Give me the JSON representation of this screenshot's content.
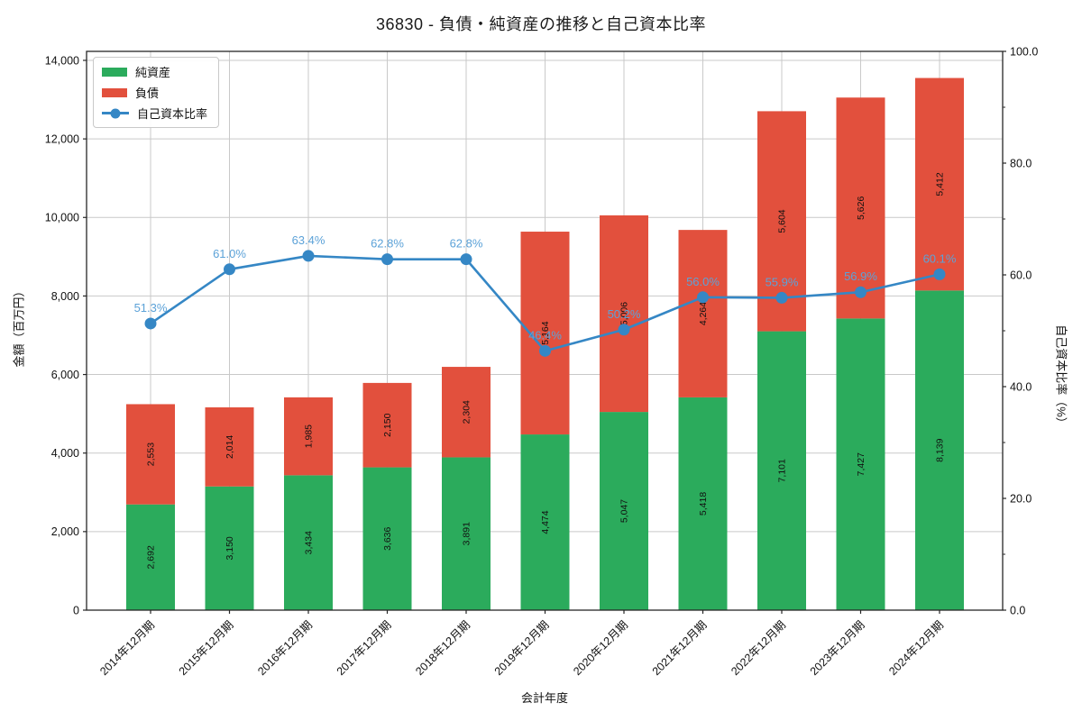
{
  "chart_title": "36830 - 負債・純資産の推移と自己資本比率",
  "axes": {
    "left_label": "金額（百万円）",
    "right_label": "自己資本比率（%）",
    "x_label": "会計年度"
  },
  "legend": {
    "items": [
      {
        "label": "純資産"
      },
      {
        "label": "負債"
      },
      {
        "label": "自己資本比率"
      }
    ]
  },
  "colors": {
    "net_assets_green": "#2bab5c",
    "liabilities_red": "#e2503d",
    "ratio_line_blue": "#3587c5",
    "ratio_label_blue": "#5ca2d8",
    "grid_gray": "#c9c9c9",
    "spine_black": "#262626",
    "bar_label_black": "#111111"
  },
  "chart_data": {
    "type": "bar",
    "subtype": "stacked-bar-with-line",
    "title": "36830 - 負債・純資産の推移と自己資本比率",
    "xlabel": "会計年度",
    "ylabel_left": "金額（百万円）",
    "ylabel_right": "自己資本比率（%）",
    "grid": true,
    "legend_position": "upper-left",
    "categories": [
      "2014年12月期",
      "2015年12月期",
      "2016年12月期",
      "2017年12月期",
      "2018年12月期",
      "2019年12月期",
      "2020年12月期",
      "2021年12月期",
      "2022年12月期",
      "2023年12月期",
      "2024年12月期"
    ],
    "series": [
      {
        "name": "純資産",
        "type": "bar",
        "stack": 0,
        "axis": "left",
        "color": "#2bab5c",
        "values": [
          2692,
          3150,
          3434,
          3636,
          3891,
          4474,
          5047,
          5418,
          7101,
          7427,
          8139
        ],
        "labels": [
          "2,692",
          "3,150",
          "3,434",
          "3,636",
          "3,891",
          "4,474",
          "5,047",
          "5,418",
          "7,101",
          "7,427",
          "8,139"
        ]
      },
      {
        "name": "負債",
        "type": "bar",
        "stack": 1,
        "axis": "left",
        "color": "#e2503d",
        "values": [
          2553,
          2014,
          1985,
          2150,
          2304,
          5164,
          5006,
          4264,
          5604,
          5626,
          5412
        ],
        "labels": [
          "2,553",
          "2,014",
          "1,985",
          "2,150",
          "2,304",
          "5,164",
          "5,006",
          "4,264",
          "5,604",
          "5,626",
          "5,412"
        ]
      },
      {
        "name": "自己資本比率",
        "type": "line",
        "axis": "right",
        "color": "#3587c5",
        "label_color": "#5ca2d8",
        "values": [
          51.3,
          61.0,
          63.4,
          62.8,
          62.8,
          46.4,
          50.2,
          56.0,
          55.9,
          56.9,
          60.1
        ],
        "labels": [
          "51.3%",
          "61.0%",
          "63.4%",
          "62.8%",
          "62.8%",
          "46.4%",
          "50.2%",
          "56.0%",
          "55.9%",
          "56.9%",
          "60.1%"
        ]
      }
    ],
    "left_axis": {
      "min": 0,
      "max": 14000,
      "tick_step": 2000,
      "headroom_max": 14229,
      "tick_labels": [
        "0",
        "2,000",
        "4,000",
        "6,000",
        "8,000",
        "10,000",
        "12,000",
        "14,000"
      ]
    },
    "right_axis": {
      "min": 0,
      "max": 100,
      "tick_step": 20,
      "minor_step": 10,
      "tick_labels": [
        "0.0",
        "20.0",
        "40.0",
        "60.0",
        "80.0",
        "100.0"
      ]
    }
  }
}
